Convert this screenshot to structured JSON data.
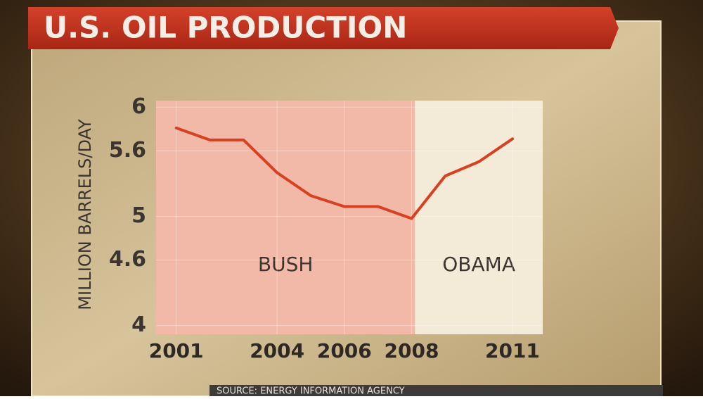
{
  "chart_data": {
    "type": "line",
    "title": "U.S. OIL PRODUCTION",
    "ylabel": "MILLION BARRELS/DAY",
    "source": "SOURCE: ENERGY INFORMATION AGENCY",
    "x": [
      2001,
      2002,
      2003,
      2004,
      2005,
      2006,
      2007,
      2008,
      2009,
      2010,
      2011
    ],
    "series": [
      {
        "name": "U.S. oil production",
        "color": "#d8401f",
        "values": [
          5.81,
          5.7,
          5.7,
          5.4,
          5.19,
          5.09,
          5.09,
          4.98,
          5.37,
          5.5,
          5.71
        ]
      }
    ],
    "xlim": [
      2000.4,
      2011.9
    ],
    "xticks": [
      2001,
      2004,
      2006,
      2008,
      2011
    ],
    "ylim": [
      3.92,
      6.06
    ],
    "yticks": [
      {
        "value": 6,
        "label": "6"
      },
      5.6,
      {
        "value": 5,
        "label": "5"
      },
      4.6,
      {
        "value": 4,
        "label": "4"
      }
    ],
    "grid": true,
    "regions": [
      {
        "label": "BUSH",
        "color": "#f3b9a8",
        "xlim": [
          2000.4,
          2008.1
        ]
      },
      {
        "label": "OBAMA",
        "color": "#f4ead8",
        "xlim": [
          2008.1,
          2011.9
        ]
      }
    ]
  }
}
